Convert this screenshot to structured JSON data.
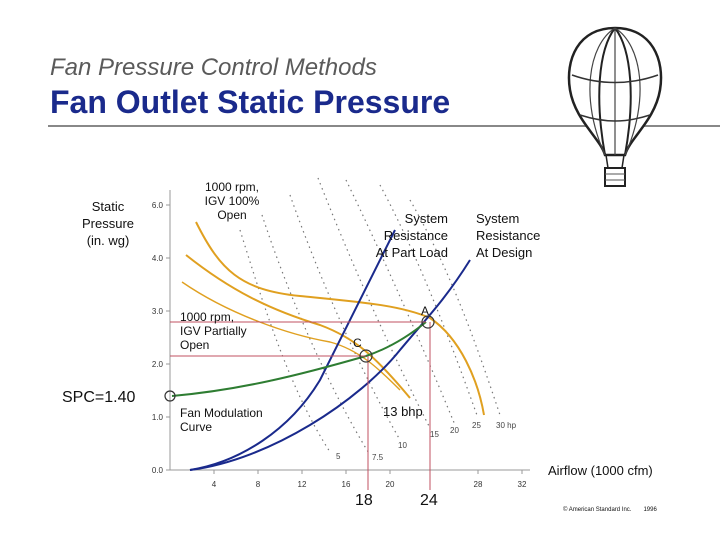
{
  "slide": {
    "subtitle": "Fan Pressure Control Methods",
    "title": "Fan Outlet Static Pressure",
    "copyright": "© American Standard Inc.",
    "copyright_year": "1996"
  },
  "chart_data": {
    "type": "line",
    "ylabel_lines": [
      "Static",
      "Pressure",
      "(in. wg)"
    ],
    "xlabel": "Airflow (1000 cfm)",
    "y_ticks": [
      "0.0",
      "1.0",
      "2.0",
      "3.0",
      "4.0",
      "6.0"
    ],
    "x_ticks": [
      "4",
      "8",
      "12",
      "16",
      "20",
      "28",
      "32"
    ],
    "annotations": {
      "fan_full": [
        "1000 rpm,",
        "IGV 100%",
        "Open"
      ],
      "fan_partial": [
        "1000 rpm,",
        "IGV Partially",
        "Open"
      ],
      "system_part": [
        "System",
        "Resistance",
        "At Part Load"
      ],
      "system_design": [
        "System",
        "Resistance",
        "At Design"
      ],
      "fan_modulation": [
        "Fan Modulation",
        "Curve"
      ],
      "bhp_13": "13 bhp",
      "spc": "SPC=1.40",
      "point_a": "A",
      "point_c": "C",
      "x_marker_c": "18",
      "x_marker_a": "24"
    },
    "bhp_labels": [
      "5",
      "7.5",
      "10",
      "15",
      "20",
      "25",
      "30 hp"
    ],
    "colors": {
      "fan_curve": "#e0a020",
      "system_curve": "#1a2a8c",
      "modulation_curve": "#2e7d32",
      "reference_lines": "#c05060"
    }
  }
}
